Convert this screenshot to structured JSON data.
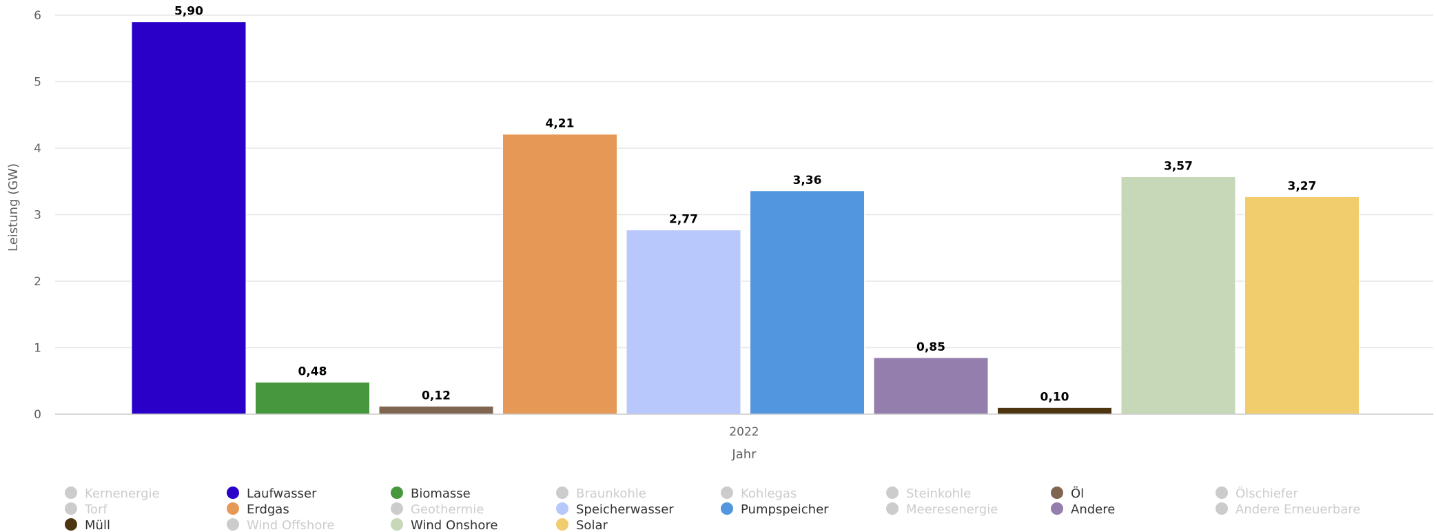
{
  "chart_data": {
    "type": "bar",
    "categories": [
      "2022"
    ],
    "xlabel": "Jahr",
    "ylabel": "Leistung (GW)",
    "ylim": [
      0,
      6
    ],
    "yticks": [
      "0",
      "1",
      "2",
      "3",
      "4",
      "5",
      "6"
    ],
    "grid": true,
    "legend_position": "bottom",
    "series": [
      {
        "name": "Kernenergie",
        "color": "#cccccc",
        "visible": false,
        "value": null
      },
      {
        "name": "Laufwasser",
        "color": "#2a00c9",
        "visible": true,
        "value": 5.9,
        "label": "5,90"
      },
      {
        "name": "Biomasse",
        "color": "#47983d",
        "visible": true,
        "value": 0.48,
        "label": "0,48"
      },
      {
        "name": "Braunkohle",
        "color": "#cccccc",
        "visible": false,
        "value": null
      },
      {
        "name": "Kohlegas",
        "color": "#cccccc",
        "visible": false,
        "value": null
      },
      {
        "name": "Steinkohle",
        "color": "#cccccc",
        "visible": false,
        "value": null
      },
      {
        "name": "Öl",
        "color": "#7f6650",
        "visible": true,
        "value": 0.12,
        "label": "0,12"
      },
      {
        "name": "Ölschiefer",
        "color": "#cccccc",
        "visible": false,
        "value": null
      },
      {
        "name": "Torf",
        "color": "#cccccc",
        "visible": false,
        "value": null
      },
      {
        "name": "Erdgas",
        "color": "#e69956",
        "visible": true,
        "value": 4.21,
        "label": "4,21"
      },
      {
        "name": "Geothermie",
        "color": "#cccccc",
        "visible": false,
        "value": null
      },
      {
        "name": "Speicherwasser",
        "color": "#b8c7fc",
        "visible": true,
        "value": 2.77,
        "label": "2,77"
      },
      {
        "name": "Pumpspeicher",
        "color": "#5296df",
        "visible": true,
        "value": 3.36,
        "label": "3,36"
      },
      {
        "name": "Meeresenergie",
        "color": "#cccccc",
        "visible": false,
        "value": null
      },
      {
        "name": "Andere",
        "color": "#947eae",
        "visible": true,
        "value": 0.85,
        "label": "0,85"
      },
      {
        "name": "Andere Erneuerbare",
        "color": "#cccccc",
        "visible": false,
        "value": null
      },
      {
        "name": "Müll",
        "color": "#4e3512",
        "visible": true,
        "value": 0.1,
        "label": "0,10"
      },
      {
        "name": "Wind Offshore",
        "color": "#cccccc",
        "visible": false,
        "value": null
      },
      {
        "name": "Wind Onshore",
        "color": "#c7d8b9",
        "visible": true,
        "value": 3.57,
        "label": "3,57"
      },
      {
        "name": "Solar",
        "color": "#f1cd6d",
        "visible": true,
        "value": 3.27,
        "label": "3,27"
      }
    ]
  }
}
